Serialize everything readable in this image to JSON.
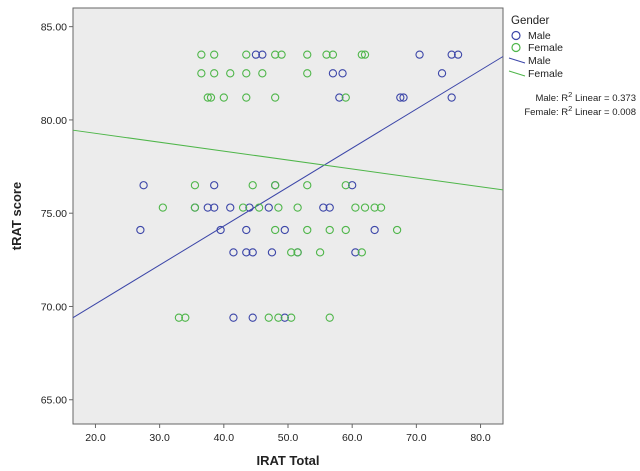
{
  "colors": {
    "male": "#3c46a8",
    "female": "#4fb64a",
    "plot_bg": "#ececec",
    "frame": "#666666"
  },
  "chart_data": {
    "type": "scatter",
    "title": "",
    "xlabel": "IRAT Total",
    "ylabel": "tRAT score",
    "xlim": [
      16.5,
      83.5
    ],
    "ylim": [
      63.7,
      86.0
    ],
    "xticks": [
      "20.0",
      "30.0",
      "40.0",
      "50.0",
      "60.0",
      "70.0",
      "80.0"
    ],
    "yticks": [
      "65.00",
      "70.00",
      "75.00",
      "80.00",
      "85.00"
    ],
    "grid": false,
    "legend": {
      "title": "Gender",
      "placement": "right",
      "entries": [
        {
          "label": "Male",
          "kind": "marker",
          "color": "male"
        },
        {
          "label": "Female",
          "kind": "marker",
          "color": "female"
        },
        {
          "label": "Male",
          "kind": "line",
          "color": "male"
        },
        {
          "label": "Female",
          "kind": "line",
          "color": "female"
        }
      ]
    },
    "annotations": [
      {
        "series": "Male",
        "prefix": "Male: R",
        "sup": "2",
        "suffix": " Linear = 0.373"
      },
      {
        "series": "Female",
        "prefix": "Female: R",
        "sup": "2",
        "suffix": " Linear = 0.008"
      }
    ],
    "series": [
      {
        "name": "Male",
        "color": "male",
        "fit": {
          "x": [
            16.5,
            83.5
          ],
          "y": [
            69.4,
            83.4
          ]
        },
        "points": [
          [
            45,
            83.5
          ],
          [
            46,
            83.5
          ],
          [
            70.5,
            83.5
          ],
          [
            75.5,
            83.5
          ],
          [
            76.5,
            83.5
          ],
          [
            57,
            82.5
          ],
          [
            58.5,
            82.5
          ],
          [
            74,
            82.5
          ],
          [
            58,
            81.2
          ],
          [
            67.5,
            81.2
          ],
          [
            68,
            81.2
          ],
          [
            75.5,
            81.2
          ],
          [
            27.5,
            76.5
          ],
          [
            38.5,
            76.5
          ],
          [
            48,
            76.5
          ],
          [
            60,
            76.5
          ],
          [
            35.5,
            75.3
          ],
          [
            37.5,
            75.3
          ],
          [
            38.5,
            75.3
          ],
          [
            41,
            75.3
          ],
          [
            44,
            75.3
          ],
          [
            47,
            75.3
          ],
          [
            55.5,
            75.3
          ],
          [
            56.5,
            75.3
          ],
          [
            27,
            74.1
          ],
          [
            39.5,
            74.1
          ],
          [
            43.5,
            74.1
          ],
          [
            49.5,
            74.1
          ],
          [
            63.5,
            74.1
          ],
          [
            41.5,
            72.9
          ],
          [
            43.5,
            72.9
          ],
          [
            44.5,
            72.9
          ],
          [
            47.5,
            72.9
          ],
          [
            51.5,
            72.9
          ],
          [
            60.5,
            72.9
          ],
          [
            41.5,
            69.4
          ],
          [
            44.5,
            69.4
          ],
          [
            49.5,
            69.4
          ]
        ]
      },
      {
        "name": "Female",
        "color": "female",
        "fit": {
          "x": [
            16.5,
            83.5
          ],
          "y": [
            79.45,
            76.25
          ]
        },
        "points": [
          [
            36.5,
            83.5
          ],
          [
            38.5,
            83.5
          ],
          [
            43.5,
            83.5
          ],
          [
            48,
            83.5
          ],
          [
            49,
            83.5
          ],
          [
            53,
            83.5
          ],
          [
            56,
            83.5
          ],
          [
            57,
            83.5
          ],
          [
            61.5,
            83.5
          ],
          [
            62,
            83.5
          ],
          [
            36.5,
            82.5
          ],
          [
            38.5,
            82.5
          ],
          [
            41,
            82.5
          ],
          [
            43.5,
            82.5
          ],
          [
            46,
            82.5
          ],
          [
            53,
            82.5
          ],
          [
            37.5,
            81.2
          ],
          [
            38,
            81.2
          ],
          [
            40,
            81.2
          ],
          [
            43.5,
            81.2
          ],
          [
            48,
            81.2
          ],
          [
            59,
            81.2
          ],
          [
            35.5,
            76.5
          ],
          [
            44.5,
            76.5
          ],
          [
            48,
            76.5
          ],
          [
            53,
            76.5
          ],
          [
            59,
            76.5
          ],
          [
            30.5,
            75.3
          ],
          [
            35.5,
            75.3
          ],
          [
            43,
            75.3
          ],
          [
            45.5,
            75.3
          ],
          [
            48.5,
            75.3
          ],
          [
            51.5,
            75.3
          ],
          [
            60.5,
            75.3
          ],
          [
            62,
            75.3
          ],
          [
            63.5,
            75.3
          ],
          [
            64.5,
            75.3
          ],
          [
            48,
            74.1
          ],
          [
            53,
            74.1
          ],
          [
            56.5,
            74.1
          ],
          [
            59,
            74.1
          ],
          [
            67,
            74.1
          ],
          [
            50.5,
            72.9
          ],
          [
            51.5,
            72.9
          ],
          [
            55,
            72.9
          ],
          [
            61.5,
            72.9
          ],
          [
            33,
            69.4
          ],
          [
            34,
            69.4
          ],
          [
            47,
            69.4
          ],
          [
            48.5,
            69.4
          ],
          [
            50.5,
            69.4
          ],
          [
            56.5,
            69.4
          ]
        ]
      }
    ]
  }
}
